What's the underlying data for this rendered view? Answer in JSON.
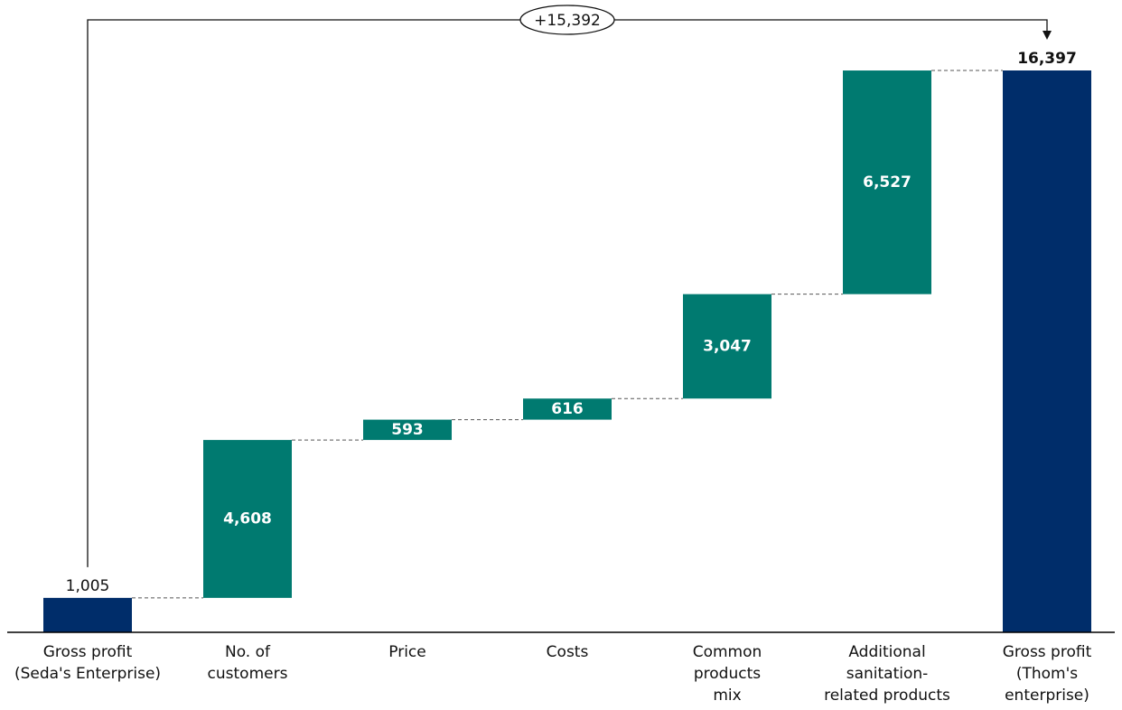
{
  "chart_data": {
    "type": "waterfall",
    "title": "",
    "categories": [
      "Gross profit\n(Seda's Enterprise)",
      "No. of\ncustomers",
      "Price",
      "Costs",
      "Common\nproducts\nmix",
      "Additional\nsanitation-\nrelated products",
      "Gross profit\n(Thom's\nenterprise)"
    ],
    "values": [
      1005,
      4608,
      593,
      616,
      3047,
      6527,
      16397
    ],
    "value_labels": [
      "1,005",
      "4,608",
      "593",
      "616",
      "3,047",
      "6,527",
      "16,397"
    ],
    "kinds": [
      "total",
      "delta",
      "delta",
      "delta",
      "delta",
      "delta",
      "total"
    ],
    "total_change_label": "+15,392",
    "ylim": [
      0,
      16397
    ],
    "grid": false,
    "colors": {
      "total": "#002d6a",
      "delta": "#007a70",
      "connector": "#555555",
      "axis": "#000000",
      "text": "#111111"
    }
  }
}
